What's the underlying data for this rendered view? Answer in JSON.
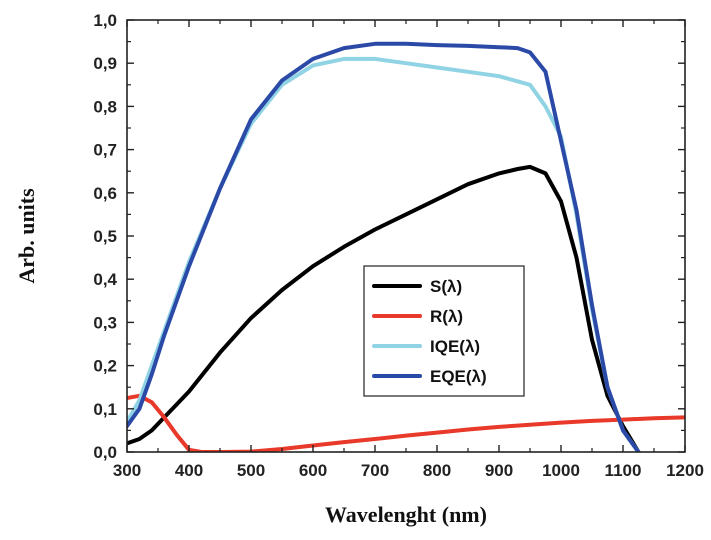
{
  "chart_data": {
    "type": "line",
    "title": "",
    "xlabel": "Wavelenght (nm)",
    "ylabel": "Arb. units",
    "xlim": [
      300,
      1200
    ],
    "ylim": [
      0.0,
      1.0
    ],
    "grid": false,
    "legend_position": "center",
    "x_ticks": [
      "300",
      "400",
      "500",
      "600",
      "700",
      "800",
      "900",
      "1000",
      "1100",
      "1200"
    ],
    "y_ticks": [
      "0,0",
      "0,1",
      "0,2",
      "0,3",
      "0,4",
      "0,5",
      "0,6",
      "0,7",
      "0,8",
      "0,9",
      "1,0"
    ],
    "series": [
      {
        "name": "S(λ)",
        "color": "#000000",
        "x": [
          300,
          320,
          340,
          360,
          380,
          400,
          450,
          500,
          550,
          600,
          650,
          700,
          750,
          800,
          850,
          900,
          930,
          950,
          975,
          1000,
          1025,
          1050,
          1075,
          1100,
          1125
        ],
        "y": [
          0.02,
          0.03,
          0.05,
          0.08,
          0.11,
          0.14,
          0.23,
          0.31,
          0.375,
          0.43,
          0.475,
          0.515,
          0.55,
          0.585,
          0.62,
          0.645,
          0.655,
          0.66,
          0.645,
          0.58,
          0.45,
          0.26,
          0.13,
          0.06,
          0.0
        ]
      },
      {
        "name": "R(λ)",
        "color": "#e8392a",
        "x": [
          300,
          320,
          340,
          360,
          380,
          400,
          420,
          450,
          500,
          550,
          600,
          650,
          700,
          750,
          800,
          850,
          900,
          950,
          1000,
          1050,
          1100,
          1150,
          1200
        ],
        "y": [
          0.125,
          0.13,
          0.115,
          0.08,
          0.04,
          0.005,
          0.0,
          0.0,
          0.001,
          0.007,
          0.015,
          0.023,
          0.03,
          0.038,
          0.045,
          0.052,
          0.058,
          0.063,
          0.068,
          0.072,
          0.075,
          0.078,
          0.08
        ]
      },
      {
        "name": "IQE(λ)",
        "color": "#8fd3e4",
        "x": [
          300,
          320,
          340,
          360,
          380,
          400,
          450,
          500,
          550,
          600,
          650,
          700,
          750,
          800,
          850,
          900,
          950,
          975,
          1000,
          1025,
          1050,
          1075,
          1100,
          1125
        ],
        "y": [
          0.07,
          0.12,
          0.2,
          0.28,
          0.36,
          0.44,
          0.61,
          0.76,
          0.85,
          0.895,
          0.91,
          0.91,
          0.9,
          0.89,
          0.88,
          0.87,
          0.85,
          0.8,
          0.73,
          0.55,
          0.33,
          0.15,
          0.05,
          0.0
        ]
      },
      {
        "name": "EQE(λ)",
        "color": "#2b4aa8",
        "x": [
          300,
          320,
          340,
          360,
          380,
          400,
          450,
          500,
          550,
          600,
          650,
          700,
          750,
          800,
          850,
          900,
          930,
          950,
          975,
          1000,
          1025,
          1050,
          1075,
          1100,
          1125
        ],
        "y": [
          0.06,
          0.1,
          0.18,
          0.27,
          0.35,
          0.43,
          0.61,
          0.77,
          0.86,
          0.91,
          0.935,
          0.945,
          0.945,
          0.942,
          0.94,
          0.937,
          0.935,
          0.925,
          0.88,
          0.72,
          0.56,
          0.34,
          0.15,
          0.05,
          0.0
        ]
      }
    ]
  }
}
